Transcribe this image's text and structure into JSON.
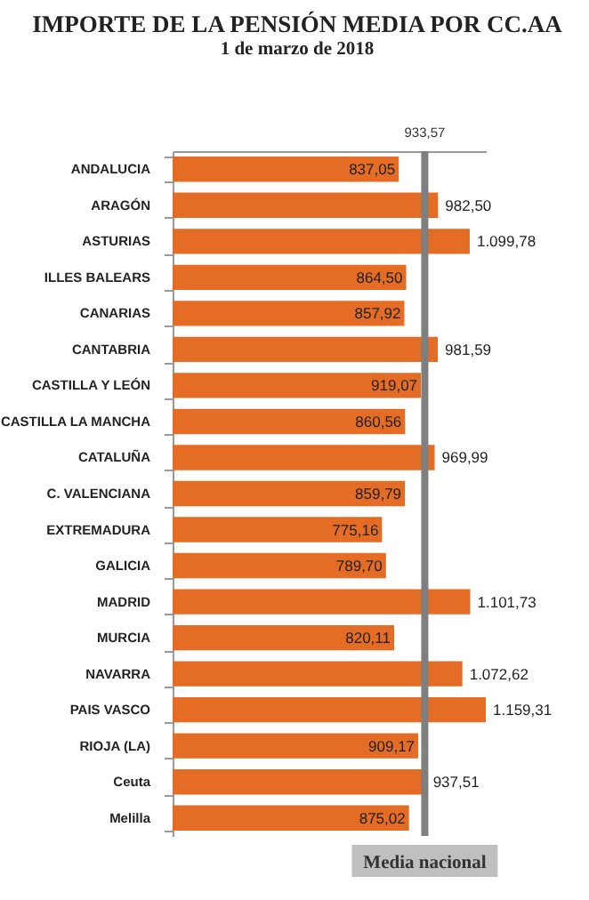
{
  "chart_data": {
    "type": "bar",
    "orientation": "horizontal",
    "title": "IMPORTE DE LA PENSIÓN MEDIA POR CC.AA",
    "subtitle": "1 de marzo de 2018",
    "categories": [
      "ANDALUCIA",
      "ARAGÓN",
      "ASTURIAS",
      "ILLES BALEARS",
      "CANARIAS",
      "CANTABRIA",
      "CASTILLA Y LEÓN",
      "CASTILLA LA MANCHA",
      "CATALUÑA",
      "C. VALENCIANA",
      "EXTREMADURA",
      "GALICIA",
      "MADRID",
      "MURCIA",
      "NAVARRA",
      "PAIS VASCO",
      "RIOJA (LA)",
      "Ceuta",
      "Melilla"
    ],
    "values": [
      837.05,
      982.5,
      1099.78,
      864.5,
      857.92,
      981.59,
      919.07,
      860.56,
      969.99,
      859.79,
      775.16,
      789.7,
      1101.73,
      820.11,
      1072.62,
      1159.31,
      909.17,
      937.51,
      875.02
    ],
    "value_labels": [
      "837,05",
      "982,50",
      "1.099,78",
      "864,50",
      "857,92",
      "981,59",
      "919,07",
      "860,56",
      "969,99",
      "859,79",
      "775,16",
      "789,70",
      "1.101,73",
      "820,11",
      "1.072,62",
      "1.159,31",
      "909,17",
      "937,51",
      "875,02"
    ],
    "color": "#e46c24",
    "ref_lines": [
      {
        "axis": "x",
        "value": 933.57,
        "label": "Media nacional",
        "color": "#7f7f7f"
      }
    ],
    "annotations": [
      "933,57"
    ]
  }
}
